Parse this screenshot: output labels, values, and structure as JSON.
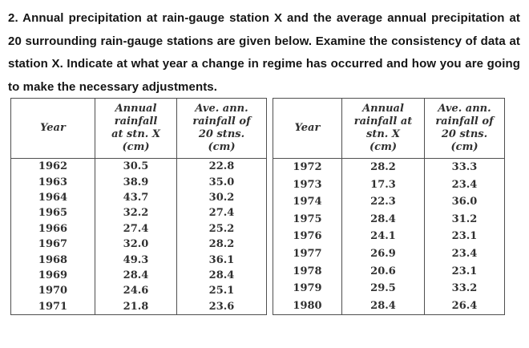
{
  "problem": {
    "text": "2. Annual precipitation at rain-gauge station X and the average annual precipitation at 20 surrounding rain-gauge stations are given below. Examine the consistency of data at station X. Indicate at what year a change in regime has occurred and how you are going to make the necessary adjustments."
  },
  "tables": {
    "left": {
      "headers": {
        "year": "Year",
        "station_x": "Annual\nrainfall\nat stn. X\n(cm)",
        "avg_20": "Ave. ann.\nrainfall of\n20 stns.\n(cm)"
      },
      "rows": [
        [
          "1962",
          "30.5",
          "22.8"
        ],
        [
          "1963",
          "38.9",
          "35.0"
        ],
        [
          "1964",
          "43.7",
          "30.2"
        ],
        [
          "1965",
          "32.2",
          "27.4"
        ],
        [
          "1966",
          "27.4",
          "25.2"
        ],
        [
          "1967",
          "32.0",
          "28.2"
        ],
        [
          "1968",
          "49.3",
          "36.1"
        ],
        [
          "1969",
          "28.4",
          "28.4"
        ],
        [
          "1970",
          "24.6",
          "25.1"
        ],
        [
          "1971",
          "21.8",
          "23.6"
        ]
      ]
    },
    "right": {
      "headers": {
        "year": "Year",
        "station_x": "Annual\nrainfall at\nstn. X\n(cm)",
        "avg_20": "Ave. ann.\nrainfall of\n20 stns.\n(cm)"
      },
      "rows": [
        [
          "1972",
          "28.2",
          "33.3"
        ],
        [
          "1973",
          "17.3",
          "23.4"
        ],
        [
          "1974",
          "22.3",
          "36.0"
        ],
        [
          "1975",
          "28.4",
          "31.2"
        ],
        [
          "1976",
          "24.1",
          "23.1"
        ],
        [
          "1977",
          "26.9",
          "23.4"
        ],
        [
          "1978",
          "20.6",
          "23.1"
        ],
        [
          "1979",
          "29.5",
          "33.2"
        ],
        [
          "1980",
          "28.4",
          "26.4"
        ]
      ]
    }
  },
  "colors": {
    "text": "#151515",
    "table_text": "#303030",
    "border": "#4f4f4f",
    "background": "#ffffff"
  }
}
